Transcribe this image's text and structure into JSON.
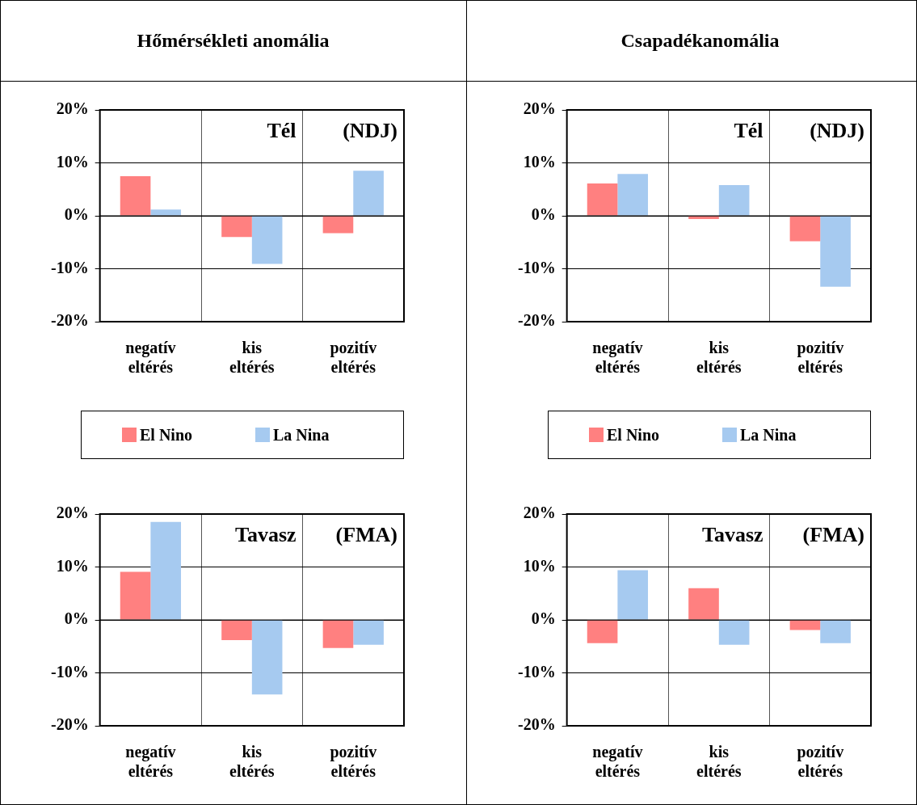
{
  "chart_data": [
    {
      "type": "bar",
      "title": "Hőmérsékleti anomália",
      "categories": [
        "negatív eltérés",
        "kis eltérés",
        "pozitív eltérés"
      ],
      "series": [
        {
          "name": "El Nino",
          "color": "#ff8080",
          "values": [
            7.5,
            -4.0,
            -3.3
          ]
        },
        {
          "name": "La Nina",
          "color": "#a6caf0",
          "values": [
            1.2,
            -9.1,
            8.5
          ]
        }
      ],
      "ylim": [
        -20,
        20
      ],
      "yticks": [
        {
          "value": -20,
          "label": "-20%"
        },
        {
          "value": -10,
          "label": "-10%"
        },
        {
          "value": 0,
          "label": "0%"
        },
        {
          "value": 10,
          "label": "10%"
        },
        {
          "value": 20,
          "label": "20%"
        }
      ],
      "grid": true,
      "legend": "bottom",
      "annotations": [
        "Tél",
        "(NDJ)"
      ]
    },
    {
      "type": "bar",
      "title": "Csapadékanomália",
      "categories": [
        "negatív eltérés",
        "kis eltérés",
        "pozitív eltérés"
      ],
      "series": [
        {
          "name": "El Nino",
          "color": "#ff8080",
          "values": [
            6.1,
            -0.6,
            -4.8
          ]
        },
        {
          "name": "La Nina",
          "color": "#a6caf0",
          "values": [
            7.9,
            5.8,
            -13.4
          ]
        }
      ],
      "ylim": [
        -20,
        20
      ],
      "yticks": [
        {
          "value": -20,
          "label": "-20%"
        },
        {
          "value": -10,
          "label": "-10%"
        },
        {
          "value": 0,
          "label": "0%"
        },
        {
          "value": 10,
          "label": "10%"
        },
        {
          "value": 20,
          "label": "20%"
        }
      ],
      "grid": true,
      "legend": "bottom",
      "annotations": [
        "Tél",
        "(NDJ)"
      ]
    },
    {
      "type": "bar",
      "categories": [
        "negatív eltérés",
        "kis eltérés",
        "pozitív eltérés"
      ],
      "series": [
        {
          "color": "#ff8080",
          "values": [
            9.1,
            -3.8,
            -5.3
          ]
        },
        {
          "color": "#a6caf0",
          "values": [
            18.5,
            -14.1,
            -4.7
          ]
        }
      ],
      "ylim": [
        -20,
        20
      ],
      "yticks": [
        {
          "value": -20,
          "label": "-20%"
        },
        {
          "value": -10,
          "label": "-10%"
        },
        {
          "value": 0,
          "label": "0%"
        },
        {
          "value": 10,
          "label": "10%"
        },
        {
          "value": 20,
          "label": "20%"
        }
      ],
      "grid": true,
      "annotations": [
        "Tavasz",
        "(FMA)"
      ]
    },
    {
      "type": "bar",
      "categories": [
        "negatív eltérés",
        "kis eltérés",
        "pozitív eltérés"
      ],
      "series": [
        {
          "color": "#ff8080",
          "values": [
            -4.4,
            6.0,
            -1.9
          ]
        },
        {
          "color": "#a6caf0",
          "values": [
            9.4,
            -4.7,
            -4.4
          ]
        }
      ],
      "ylim": [
        -20,
        20
      ],
      "yticks": [
        {
          "value": -20,
          "label": "-20%"
        },
        {
          "value": -10,
          "label": "-10%"
        },
        {
          "value": 0,
          "label": "0%"
        },
        {
          "value": 10,
          "label": "10%"
        },
        {
          "value": 20,
          "label": "20%"
        }
      ],
      "grid": true,
      "annotations": [
        "Tavasz",
        "(FMA)"
      ]
    }
  ]
}
